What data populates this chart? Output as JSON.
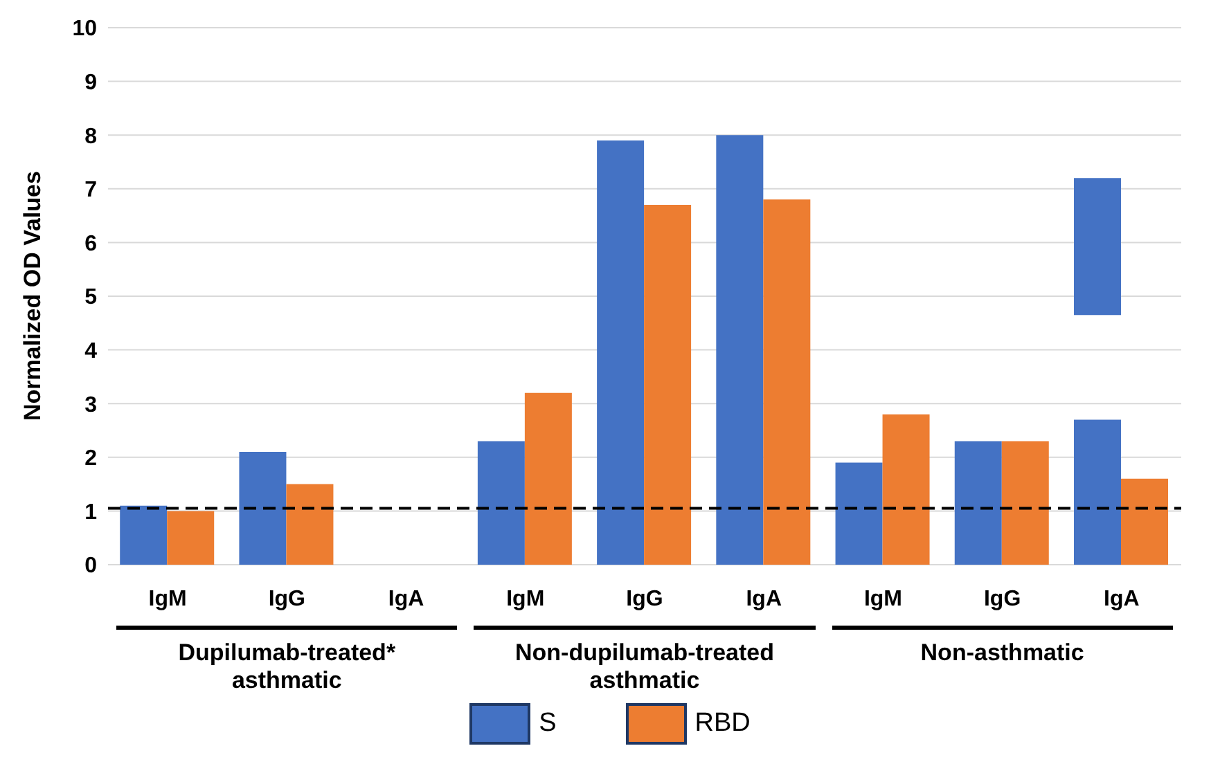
{
  "chart_data": {
    "type": "bar",
    "ylabel": "Normalized OD Values",
    "categories": [
      "IgM",
      "IgG",
      "IgA",
      "IgM",
      "IgG",
      "IgA",
      "IgM",
      "IgG",
      "IgA"
    ],
    "series": [
      {
        "name": "S",
        "color": "#4472c4",
        "values": [
          1.1,
          2.1,
          null,
          2.3,
          7.9,
          8.0,
          1.9,
          2.3,
          2.7
        ]
      },
      {
        "name": "RBD",
        "color": "#ed7d31",
        "values": [
          1.0,
          1.5,
          null,
          3.2,
          6.7,
          6.8,
          2.8,
          2.3,
          1.6
        ]
      },
      {
        "color": "#4472c4",
        "values": [
          null,
          null,
          null,
          null,
          null,
          null,
          null,
          null,
          2.55
        ],
        "base": [
          null,
          null,
          null,
          null,
          null,
          null,
          null,
          null,
          4.65
        ]
      }
    ],
    "ylim": [
      0,
      10
    ],
    "yticks": [
      0,
      1,
      2,
      3,
      4,
      5,
      6,
      7,
      8,
      9,
      10
    ],
    "grid": "y",
    "legend": "bottom",
    "ref_lines": [
      {
        "axis": "y",
        "value": 1.05,
        "line_style": "dashed",
        "color": "#000000"
      }
    ],
    "annotations": [
      "Dupilumab-treated* asthmatic",
      "Non-dupilumab-treated asthmatic",
      "Non-asthmatic"
    ]
  }
}
